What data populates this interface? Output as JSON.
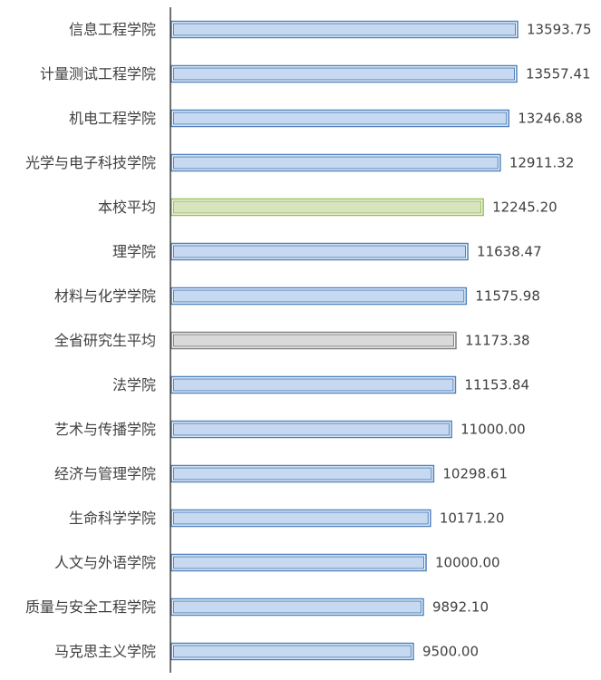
{
  "chart_data": {
    "type": "bar",
    "orientation": "horizontal",
    "title": "",
    "xlabel": "",
    "ylabel": "",
    "grid": false,
    "legend": "none",
    "categories": [
      "信息工程学院",
      "计量测试工程学院",
      "机电工程学院",
      "光学与电子科技学院",
      "本校平均",
      "理学院",
      "材料与化学学院",
      "全省研究生平均",
      "法学院",
      "艺术与传播学院",
      "经济与管理学院",
      "生命科学学院",
      "人文与外语学院",
      "质量与安全工程学院",
      "马克思主义学院"
    ],
    "values": [
      13593.75,
      13557.41,
      13246.88,
      12911.32,
      12245.2,
      11638.47,
      11575.98,
      11173.38,
      11153.84,
      11000.0,
      10298.61,
      10171.2,
      10000.0,
      9892.1,
      9500.0
    ],
    "value_labels": [
      "13593.75",
      "13557.41",
      "13246.88",
      "12911.32",
      "12245.20",
      "11638.47",
      "11575.98",
      "11173.38",
      "11153.84",
      "11000.00",
      "10298.61",
      "10171.20",
      "10000.00",
      "9892.10",
      "9500.00"
    ],
    "xlim": [
      0,
      13593.75
    ],
    "colors": {
      "default_fill": "#c6d9f1",
      "default_stroke": "#4f81bd",
      "school_avg_fill": "#d7e4bd",
      "school_avg_stroke": "#9bbb59",
      "province_avg_fill": "#d9d9d9",
      "province_avg_stroke": "#7f7f7f",
      "axis": "#404040"
    },
    "highlight": {
      "本校平均": "school_avg",
      "全省研究生平均": "province_avg"
    }
  }
}
